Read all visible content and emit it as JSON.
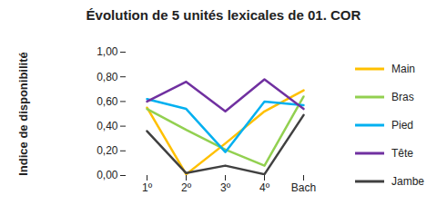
{
  "chart_data": {
    "type": "line",
    "title": "Évolution de 5 unités lexicales de 01. COR",
    "y_label": "Indice de disponibilité",
    "categories": [
      "1º",
      "2º",
      "3º",
      "4º",
      "Bach"
    ],
    "series": [
      {
        "name": "Main",
        "color": "#FFC000",
        "values": [
          0.55,
          0.01,
          0.26,
          0.52,
          0.69
        ]
      },
      {
        "name": "Bras",
        "color": "#92D050",
        "values": [
          0.54,
          0.37,
          0.21,
          0.08,
          0.64
        ]
      },
      {
        "name": "Pied",
        "color": "#00B0F0",
        "values": [
          0.62,
          0.54,
          0.19,
          0.6,
          0.57
        ]
      },
      {
        "name": "Tête",
        "color": "#7030A0",
        "values": [
          0.6,
          0.76,
          0.52,
          0.78,
          0.54
        ]
      },
      {
        "name": "Jambe",
        "color": "#404040",
        "values": [
          0.36,
          0.02,
          0.08,
          0.01,
          0.49
        ]
      }
    ],
    "ylim": [
      0,
      1
    ],
    "yticks": [
      {
        "value": 0,
        "label": "0,00"
      },
      {
        "value": 0.2,
        "label": "0,20"
      },
      {
        "value": 0.4,
        "label": "0,40"
      },
      {
        "value": 0.6,
        "label": "0,60"
      },
      {
        "value": 0.8,
        "label": "0,80"
      },
      {
        "value": 1,
        "label": "1,00"
      }
    ],
    "grid": false,
    "legend": "right"
  }
}
